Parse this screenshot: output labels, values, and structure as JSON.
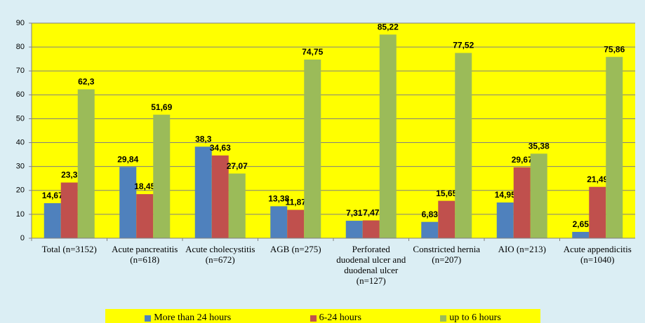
{
  "chart_data": {
    "type": "bar",
    "categories": [
      "Total (n=3152)",
      "Acute pancreatitis (n=618)",
      "Acute cholecystitis (n=672)",
      "AGB (n=275)",
      "Perforated duodenal ulcer and duodenal ulcer (n=127)",
      "Constricted hernia (n=207)",
      "AIO (n=213)",
      "Acute appendicitis (n=1040)"
    ],
    "series": [
      {
        "name": "More than 24 hours",
        "color": "#4f81bd",
        "values": [
          14.67,
          29.84,
          38.3,
          13.38,
          7.31,
          6.83,
          14.95,
          2.65
        ],
        "value_labels": [
          "14,67",
          "29,84",
          "38,3",
          "13,38",
          "7,31",
          "6,83",
          "14,95",
          "2,65"
        ]
      },
      {
        "name": "6-24 hours",
        "color": "#c0504d",
        "values": [
          23.3,
          18.45,
          34.63,
          11.87,
          7.47,
          15.65,
          29.67,
          21.49
        ],
        "value_labels": [
          "23,3",
          "18,45",
          "34,63",
          "11,87",
          "7,47",
          "15,65",
          "29,67",
          "21,49"
        ]
      },
      {
        "name": "up to 6 hours",
        "color": "#9bbb59",
        "values": [
          62.3,
          51.69,
          27.07,
          74.75,
          85.22,
          77.52,
          35.38,
          75.86
        ],
        "value_labels": [
          "62,3",
          "51,69",
          "27,07",
          "74,75",
          "85,22",
          "77,52",
          "35,38",
          "75,86"
        ]
      }
    ],
    "ylim": [
      0,
      90
    ],
    "yticks": [
      0,
      10,
      20,
      30,
      40,
      50,
      60,
      70,
      80,
      90
    ],
    "grid": true,
    "legend": "bottom"
  }
}
